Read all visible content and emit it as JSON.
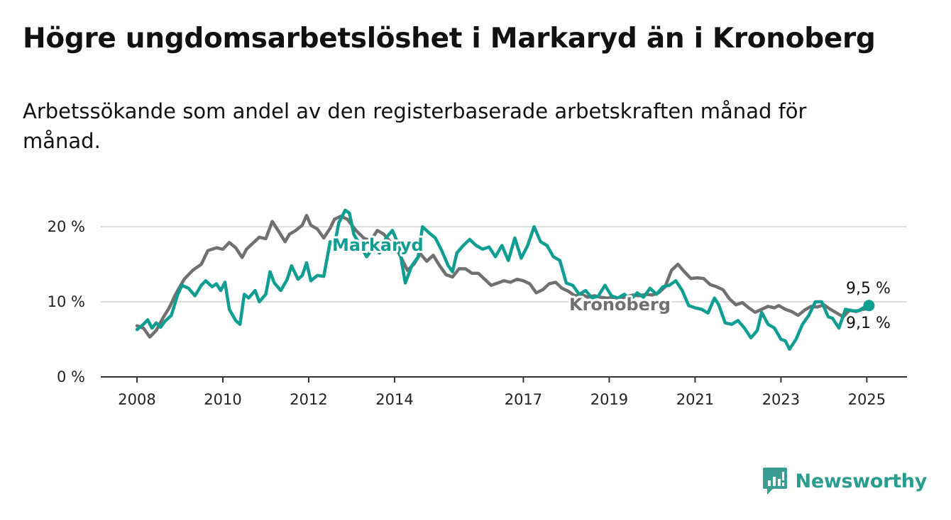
{
  "title": "Högre ungdomsarbetslöshet i Markaryd än i Kronoberg",
  "subtitle": "Arbetssökande som andel av den registerbaserade arbetskraften månad för månad.",
  "brand": {
    "name": "Newsworthy",
    "icon": "bar-chart-logo-icon",
    "color": "#3a9e94"
  },
  "colors": {
    "markaryd": "#0f9e91",
    "kronoberg": "#707070",
    "grid": "#dddddd",
    "axis": "#333333"
  },
  "chart_data": {
    "type": "line",
    "xlim": [
      2008,
      2025.5
    ],
    "ylim": [
      0,
      22
    ],
    "y_ticks": [
      {
        "value": 0,
        "label": "0 %"
      },
      {
        "value": 10,
        "label": "10 %"
      },
      {
        "value": 20,
        "label": "20 %"
      }
    ],
    "x_ticks": [
      {
        "value": 2008,
        "label": "2008"
      },
      {
        "value": 2010,
        "label": "2010"
      },
      {
        "value": 2012,
        "label": "2012"
      },
      {
        "value": 2014,
        "label": "2014"
      },
      {
        "value": 2017,
        "label": "2017"
      },
      {
        "value": 2019,
        "label": "2019"
      },
      {
        "value": 2021,
        "label": "2021"
      },
      {
        "value": 2023,
        "label": "2023"
      },
      {
        "value": 2025,
        "label": "2025"
      }
    ],
    "grid": true,
    "series": [
      {
        "name": "Kronoberg",
        "key": "kronoberg",
        "end_label": "9,1 %",
        "points": [
          [
            2008.0,
            6.8
          ],
          [
            2008.15,
            6.5
          ],
          [
            2008.3,
            5.3
          ],
          [
            2008.45,
            6.2
          ],
          [
            2008.6,
            7.8
          ],
          [
            2008.75,
            9.2
          ],
          [
            2008.9,
            11.0
          ],
          [
            2009.1,
            13.0
          ],
          [
            2009.3,
            14.2
          ],
          [
            2009.5,
            15.0
          ],
          [
            2009.65,
            16.8
          ],
          [
            2009.85,
            17.2
          ],
          [
            2010.0,
            17.0
          ],
          [
            2010.15,
            17.9
          ],
          [
            2010.3,
            17.2
          ],
          [
            2010.45,
            15.9
          ],
          [
            2010.55,
            17.0
          ],
          [
            2010.7,
            17.8
          ],
          [
            2010.85,
            18.6
          ],
          [
            2011.0,
            18.4
          ],
          [
            2011.15,
            20.7
          ],
          [
            2011.3,
            19.4
          ],
          [
            2011.45,
            18.0
          ],
          [
            2011.55,
            19.0
          ],
          [
            2011.7,
            19.5
          ],
          [
            2011.85,
            20.2
          ],
          [
            2011.95,
            21.5
          ],
          [
            2012.05,
            20.2
          ],
          [
            2012.2,
            19.7
          ],
          [
            2012.35,
            18.5
          ],
          [
            2012.5,
            19.8
          ],
          [
            2012.6,
            21.0
          ],
          [
            2012.75,
            21.4
          ],
          [
            2012.9,
            21.0
          ],
          [
            2013.1,
            19.5
          ],
          [
            2013.3,
            18.4
          ],
          [
            2013.45,
            18.2
          ],
          [
            2013.6,
            19.5
          ],
          [
            2013.75,
            19.0
          ],
          [
            2013.9,
            18.0
          ],
          [
            2014.1,
            16.5
          ],
          [
            2014.3,
            14.2
          ],
          [
            2014.45,
            15.0
          ],
          [
            2014.6,
            16.4
          ],
          [
            2014.75,
            15.4
          ],
          [
            2014.9,
            16.2
          ],
          [
            2015.05,
            14.8
          ],
          [
            2015.2,
            13.6
          ],
          [
            2015.35,
            13.3
          ],
          [
            2015.5,
            14.4
          ],
          [
            2015.65,
            14.4
          ],
          [
            2015.8,
            13.8
          ],
          [
            2015.95,
            13.8
          ],
          [
            2016.1,
            13.0
          ],
          [
            2016.25,
            12.2
          ],
          [
            2016.4,
            12.5
          ],
          [
            2016.55,
            12.8
          ],
          [
            2016.7,
            12.6
          ],
          [
            2016.85,
            13.0
          ],
          [
            2017.0,
            12.8
          ],
          [
            2017.15,
            12.4
          ],
          [
            2017.3,
            11.2
          ],
          [
            2017.45,
            11.6
          ],
          [
            2017.6,
            12.4
          ],
          [
            2017.75,
            12.6
          ],
          [
            2017.9,
            11.8
          ],
          [
            2018.05,
            11.4
          ],
          [
            2018.2,
            10.8
          ],
          [
            2018.35,
            11.0
          ],
          [
            2018.5,
            10.6
          ],
          [
            2018.65,
            10.8
          ],
          [
            2018.8,
            10.6
          ],
          [
            2018.95,
            10.5
          ],
          [
            2019.1,
            10.6
          ],
          [
            2019.25,
            10.4
          ],
          [
            2019.4,
            10.7
          ],
          [
            2019.55,
            10.9
          ],
          [
            2019.7,
            10.8
          ],
          [
            2019.85,
            11.0
          ],
          [
            2020.0,
            10.9
          ],
          [
            2020.15,
            11.2
          ],
          [
            2020.3,
            12.0
          ],
          [
            2020.45,
            14.2
          ],
          [
            2020.6,
            15.0
          ],
          [
            2020.75,
            14.0
          ],
          [
            2020.9,
            13.1
          ],
          [
            2021.05,
            13.2
          ],
          [
            2021.2,
            13.1
          ],
          [
            2021.35,
            12.3
          ],
          [
            2021.5,
            12.0
          ],
          [
            2021.65,
            11.6
          ],
          [
            2021.8,
            10.4
          ],
          [
            2021.95,
            9.6
          ],
          [
            2022.1,
            9.9
          ],
          [
            2022.25,
            9.2
          ],
          [
            2022.4,
            8.6
          ],
          [
            2022.55,
            9.0
          ],
          [
            2022.7,
            9.4
          ],
          [
            2022.85,
            9.2
          ],
          [
            2022.95,
            9.5
          ],
          [
            2023.1,
            9.0
          ],
          [
            2023.25,
            8.7
          ],
          [
            2023.4,
            8.2
          ],
          [
            2023.55,
            8.9
          ],
          [
            2023.7,
            9.4
          ],
          [
            2023.85,
            9.3
          ],
          [
            2024.0,
            9.6
          ],
          [
            2024.15,
            9.0
          ],
          [
            2024.3,
            8.5
          ],
          [
            2024.45,
            8.0
          ],
          [
            2024.6,
            8.9
          ],
          [
            2024.75,
            8.7
          ],
          [
            2024.9,
            9.0
          ],
          [
            2025.05,
            9.1
          ]
        ]
      },
      {
        "name": "Markaryd",
        "key": "markaryd",
        "end_label": "9,5 %",
        "points": [
          [
            2008.0,
            6.3
          ],
          [
            2008.15,
            7.0
          ],
          [
            2008.25,
            7.6
          ],
          [
            2008.35,
            6.5
          ],
          [
            2008.45,
            7.2
          ],
          [
            2008.55,
            6.6
          ],
          [
            2008.65,
            7.4
          ],
          [
            2008.8,
            8.2
          ],
          [
            2008.95,
            11.0
          ],
          [
            2009.05,
            12.2
          ],
          [
            2009.2,
            11.8
          ],
          [
            2009.35,
            10.8
          ],
          [
            2009.5,
            12.2
          ],
          [
            2009.6,
            12.8
          ],
          [
            2009.75,
            12.0
          ],
          [
            2009.85,
            12.4
          ],
          [
            2009.95,
            11.5
          ],
          [
            2010.05,
            12.6
          ],
          [
            2010.15,
            9.0
          ],
          [
            2010.3,
            7.5
          ],
          [
            2010.4,
            7.0
          ],
          [
            2010.5,
            11.0
          ],
          [
            2010.6,
            10.5
          ],
          [
            2010.75,
            11.5
          ],
          [
            2010.85,
            10.0
          ],
          [
            2011.0,
            11.0
          ],
          [
            2011.1,
            14.0
          ],
          [
            2011.2,
            12.5
          ],
          [
            2011.35,
            11.5
          ],
          [
            2011.5,
            13.0
          ],
          [
            2011.6,
            14.8
          ],
          [
            2011.75,
            13.0
          ],
          [
            2011.85,
            13.5
          ],
          [
            2011.95,
            15.2
          ],
          [
            2012.05,
            12.8
          ],
          [
            2012.2,
            13.5
          ],
          [
            2012.35,
            13.4
          ],
          [
            2012.5,
            18.0
          ],
          [
            2012.6,
            17.5
          ],
          [
            2012.7,
            20.5
          ],
          [
            2012.85,
            22.2
          ],
          [
            2012.95,
            21.8
          ],
          [
            2013.05,
            19.0
          ],
          [
            2013.2,
            17.5
          ],
          [
            2013.35,
            16.0
          ],
          [
            2013.5,
            17.2
          ],
          [
            2013.65,
            16.5
          ],
          [
            2013.8,
            18.5
          ],
          [
            2013.95,
            19.5
          ],
          [
            2014.1,
            17.5
          ],
          [
            2014.25,
            12.5
          ],
          [
            2014.4,
            14.8
          ],
          [
            2014.55,
            16.0
          ],
          [
            2014.65,
            20.0
          ],
          [
            2014.8,
            19.2
          ],
          [
            2014.95,
            18.5
          ],
          [
            2015.1,
            16.8
          ],
          [
            2015.25,
            14.8
          ],
          [
            2015.35,
            14.0
          ],
          [
            2015.45,
            16.5
          ],
          [
            2015.6,
            17.5
          ],
          [
            2015.75,
            18.3
          ],
          [
            2015.9,
            17.5
          ],
          [
            2016.05,
            17.0
          ],
          [
            2016.2,
            17.3
          ],
          [
            2016.35,
            16.0
          ],
          [
            2016.5,
            17.5
          ],
          [
            2016.65,
            15.5
          ],
          [
            2016.8,
            18.5
          ],
          [
            2016.95,
            15.8
          ],
          [
            2017.1,
            17.5
          ],
          [
            2017.25,
            20.0
          ],
          [
            2017.4,
            18.0
          ],
          [
            2017.55,
            17.5
          ],
          [
            2017.7,
            16.0
          ],
          [
            2017.85,
            15.5
          ],
          [
            2018.0,
            12.5
          ],
          [
            2018.15,
            12.2
          ],
          [
            2018.3,
            11.0
          ],
          [
            2018.45,
            11.5
          ],
          [
            2018.6,
            10.5
          ],
          [
            2018.75,
            10.8
          ],
          [
            2018.9,
            12.2
          ],
          [
            2019.05,
            10.8
          ],
          [
            2019.2,
            10.5
          ],
          [
            2019.35,
            11.0
          ],
          [
            2019.5,
            10.3
          ],
          [
            2019.65,
            11.2
          ],
          [
            2019.8,
            10.6
          ],
          [
            2019.95,
            11.8
          ],
          [
            2020.1,
            11.0
          ],
          [
            2020.25,
            12.0
          ],
          [
            2020.4,
            12.2
          ],
          [
            2020.55,
            12.8
          ],
          [
            2020.7,
            11.5
          ],
          [
            2020.85,
            9.5
          ],
          [
            2021.0,
            9.2
          ],
          [
            2021.15,
            9.0
          ],
          [
            2021.3,
            8.5
          ],
          [
            2021.45,
            10.5
          ],
          [
            2021.55,
            9.6
          ],
          [
            2021.7,
            7.2
          ],
          [
            2021.85,
            7.0
          ],
          [
            2022.0,
            7.5
          ],
          [
            2022.15,
            6.5
          ],
          [
            2022.3,
            5.2
          ],
          [
            2022.45,
            6.2
          ],
          [
            2022.55,
            8.6
          ],
          [
            2022.7,
            7.0
          ],
          [
            2022.85,
            6.5
          ],
          [
            2023.0,
            5.0
          ],
          [
            2023.1,
            4.8
          ],
          [
            2023.2,
            3.7
          ],
          [
            2023.35,
            5.0
          ],
          [
            2023.5,
            7.0
          ],
          [
            2023.65,
            8.2
          ],
          [
            2023.8,
            10.0
          ],
          [
            2023.95,
            10.0
          ],
          [
            2024.1,
            8.0
          ],
          [
            2024.2,
            7.8
          ],
          [
            2024.35,
            6.5
          ],
          [
            2024.5,
            9.0
          ],
          [
            2024.65,
            8.8
          ],
          [
            2024.8,
            8.8
          ],
          [
            2024.95,
            9.3
          ],
          [
            2025.05,
            9.5
          ]
        ]
      }
    ]
  }
}
